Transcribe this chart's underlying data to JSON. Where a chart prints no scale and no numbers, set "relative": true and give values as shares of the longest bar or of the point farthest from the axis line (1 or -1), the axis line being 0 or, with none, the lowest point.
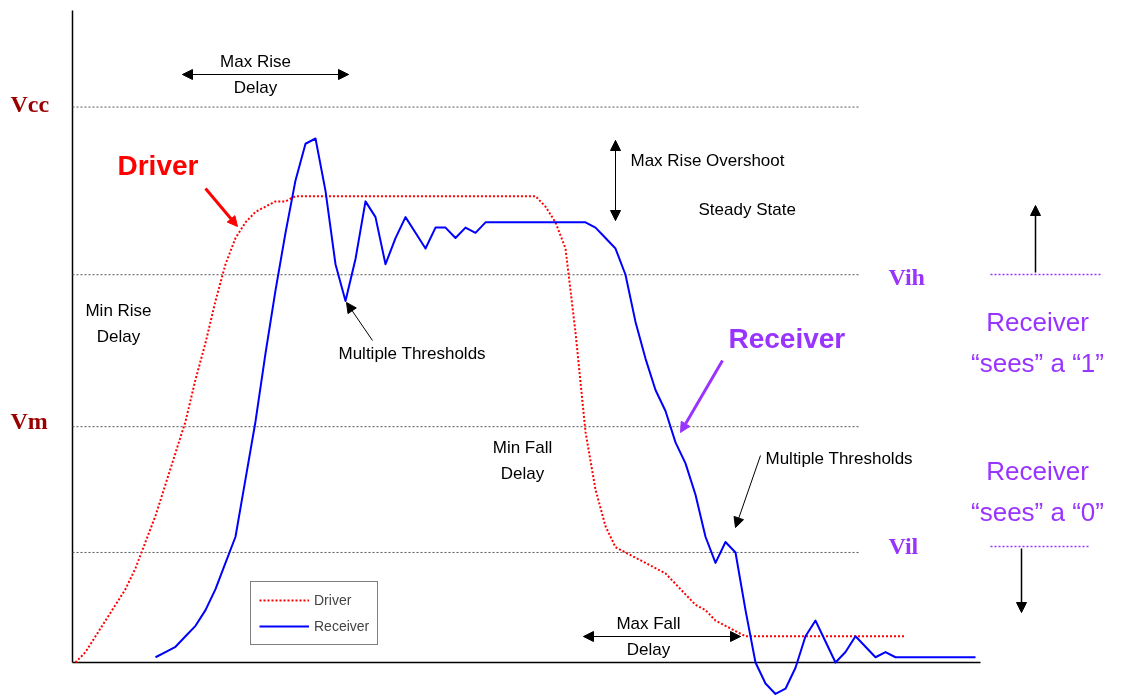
{
  "chart_data": {
    "type": "line",
    "relative": true,
    "legend": "bottom",
    "categories": [
      null,
      null,
      null,
      null,
      null,
      null,
      null,
      null,
      null,
      null,
      null,
      null,
      null,
      null,
      null,
      null,
      null,
      null,
      null,
      null,
      null,
      null,
      null,
      null,
      null,
      null,
      null,
      null,
      null,
      null,
      null,
      null,
      null,
      null,
      null,
      null,
      null,
      null,
      null,
      null,
      null,
      null,
      null,
      null,
      null,
      null,
      null,
      null,
      null,
      null,
      null,
      null,
      null,
      null,
      null,
      null,
      null,
      null,
      null,
      null,
      null,
      null,
      null,
      null,
      null,
      null,
      null,
      null,
      null,
      null,
      null,
      null,
      null,
      null,
      null,
      null,
      null,
      null,
      null,
      null,
      null,
      null,
      null,
      null,
      null,
      null,
      null,
      null,
      null,
      null,
      null
    ],
    "series": [
      {
        "name": "Driver",
        "color": "#ff0000",
        "line_style": "dotted",
        "values": [
          0.0,
          0.02,
          0.05,
          0.08,
          0.11,
          0.14,
          0.18,
          0.23,
          0.28,
          0.34,
          0.4,
          0.46,
          0.54,
          0.61,
          0.69,
          0.76,
          0.81,
          0.84,
          0.86,
          0.87,
          0.88,
          0.88,
          0.89,
          0.89,
          0.89,
          0.89,
          0.89,
          0.89,
          0.89,
          0.89,
          0.89,
          0.89,
          0.89,
          0.89,
          0.89,
          0.89,
          0.89,
          0.89,
          0.89,
          0.89,
          0.89,
          0.89,
          0.89,
          0.89,
          0.89,
          0.89,
          0.89,
          0.87,
          0.84,
          0.79,
          0.63,
          0.44,
          0.33,
          0.26,
          0.22,
          0.21,
          0.2,
          0.19,
          0.18,
          0.17,
          0.15,
          0.13,
          0.11,
          0.1,
          0.08,
          0.07,
          0.06,
          0.05,
          0.05,
          0.05,
          0.05,
          0.05,
          0.05,
          0.05,
          0.05,
          0.05,
          0.05,
          0.05,
          0.05,
          0.05,
          0.05,
          0.05,
          0.05,
          0.05,
          null,
          null,
          null,
          null,
          null,
          null,
          null
        ]
      },
      {
        "name": "Receiver",
        "color": "#0000ff",
        "line_style": "solid",
        "values": [
          null,
          null,
          null,
          null,
          null,
          null,
          null,
          null,
          0.01,
          0.02,
          0.03,
          0.05,
          0.07,
          0.1,
          0.14,
          0.19,
          0.24,
          0.35,
          0.46,
          0.59,
          0.71,
          0.82,
          0.92,
          0.99,
          1.0,
          0.9,
          0.76,
          0.69,
          0.77,
          0.88,
          0.85,
          0.76,
          0.81,
          0.85,
          0.82,
          0.79,
          0.83,
          0.83,
          0.81,
          0.83,
          0.82,
          0.84,
          0.84,
          0.84,
          0.84,
          0.84,
          0.84,
          0.84,
          0.84,
          0.84,
          0.84,
          0.84,
          0.83,
          0.81,
          0.79,
          0.74,
          0.65,
          0.58,
          0.52,
          0.48,
          0.42,
          0.38,
          0.32,
          0.24,
          0.19,
          0.23,
          0.21,
          0.1,
          0.0,
          -0.04,
          -0.06,
          -0.05,
          -0.01,
          0.05,
          0.08,
          0.04,
          0.0,
          0.02,
          0.05,
          0.03,
          0.01,
          0.02,
          0.01,
          0.01,
          0.01,
          0.01,
          0.01,
          0.01,
          0.01,
          0.01,
          0.01
        ]
      }
    ],
    "ref_lines": [
      {
        "axis": "y",
        "value": 1.06,
        "label": "Vcc",
        "color": "#555555",
        "line_style": "dotted"
      },
      {
        "axis": "y",
        "value": 0.74,
        "label": "Vih",
        "color": "#555555",
        "line_style": "dotted"
      },
      {
        "axis": "y",
        "value": 0.45,
        "label": "Vm",
        "color": "#555555",
        "line_style": "dotted"
      },
      {
        "axis": "y",
        "value": 0.21,
        "label": "Vil",
        "color": "#555555",
        "line_style": "dotted"
      }
    ],
    "annotations": [
      "Max Rise Delay",
      "Max Rise Overshoot",
      "Steady State",
      "Min Rise Delay",
      "Multiple Thresholds",
      "Min Fall Delay",
      "Multiple Thresholds",
      "Max Fall Delay",
      "Driver",
      "Receiver",
      "Receiver “sees” a “1”",
      "Receiver “sees” a “0”"
    ]
  }
}
